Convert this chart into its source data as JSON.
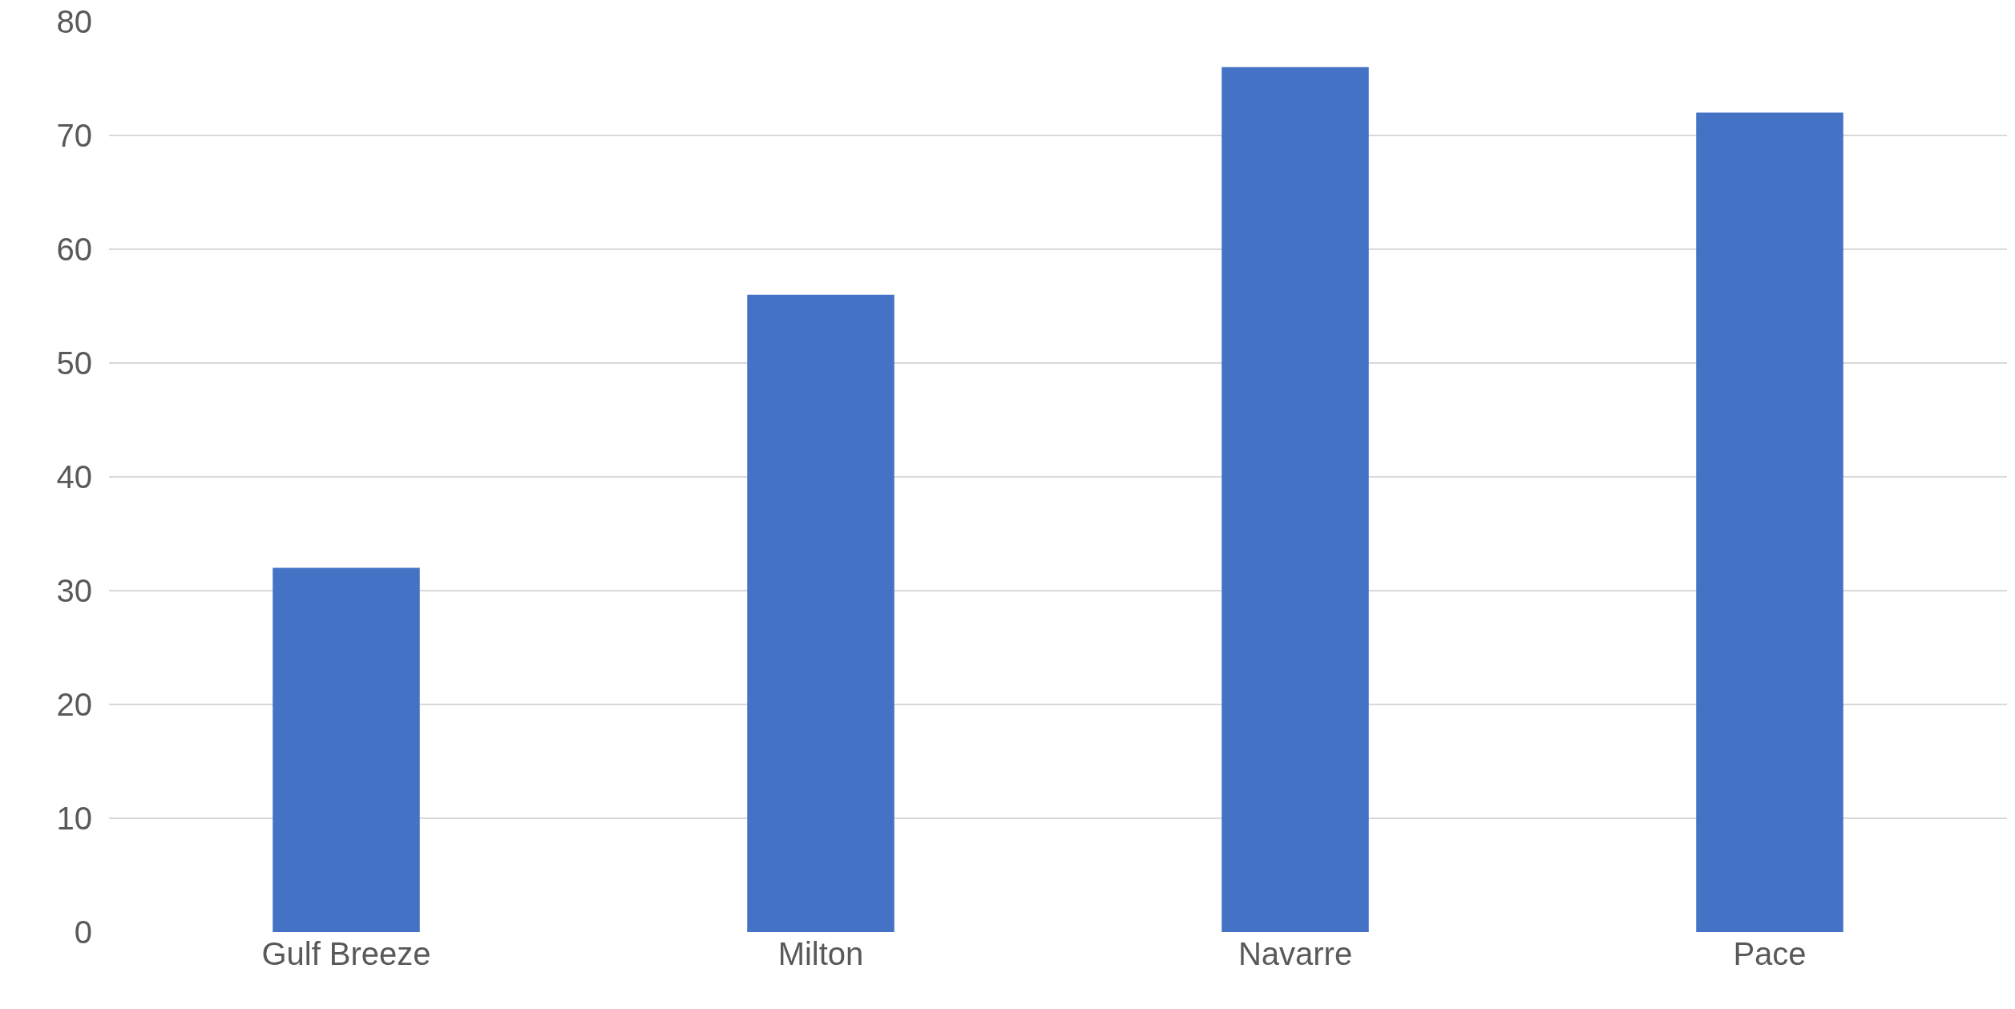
{
  "chart_data": {
    "type": "bar",
    "categories": [
      "Gulf Breeze",
      "Milton",
      "Navarre",
      "Pace"
    ],
    "values": [
      32,
      56,
      76,
      72
    ],
    "color": "#4472c4",
    "ylim": [
      0,
      80
    ],
    "yticks": [
      0,
      10,
      20,
      30,
      40,
      50,
      60,
      70,
      80
    ],
    "grid": "y"
  }
}
